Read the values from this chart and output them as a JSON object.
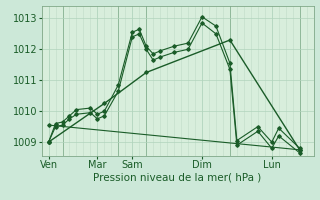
{
  "bg_color": "#cce8d8",
  "plot_bg": "#d8eedc",
  "line_color": "#1a5c28",
  "grid_color": "#b0d4bc",
  "vgrid_color": "#c0dcc8",
  "xlabel": "Pression niveau de la mer( hPa )",
  "xlabel_fontsize": 7.5,
  "tick_fontsize": 7.0,
  "ylim": [
    1008.55,
    1013.4
  ],
  "yticks": [
    1009,
    1010,
    1011,
    1012,
    1013
  ],
  "day_labels": [
    "Ven",
    "Mar",
    "Sam",
    "Dim",
    "Lun"
  ],
  "day_positions": [
    0.5,
    4.0,
    6.5,
    11.5,
    16.5
  ],
  "vline_positions": [
    1.5,
    5.5,
    7.5,
    13.5,
    18.5
  ],
  "xlim": [
    0,
    19.5
  ],
  "line1_x": [
    0.5,
    1.0,
    1.5,
    2.0,
    2.5,
    3.5,
    4.0,
    4.5,
    5.5,
    6.5,
    7.0,
    7.5,
    8.0,
    8.5,
    9.5,
    10.5,
    11.5,
    12.5,
    13.5,
    14.0,
    15.5,
    16.5,
    17.0,
    18.5
  ],
  "line1_y": [
    1009.0,
    1009.6,
    1009.65,
    1009.85,
    1010.05,
    1010.1,
    1009.9,
    1010.0,
    1010.85,
    1012.55,
    1012.65,
    1012.1,
    1011.85,
    1011.95,
    1012.1,
    1012.2,
    1013.05,
    1012.75,
    1011.55,
    1009.05,
    1009.5,
    1009.0,
    1009.45,
    1008.8
  ],
  "line2_x": [
    0.5,
    1.0,
    1.5,
    2.0,
    2.5,
    3.5,
    4.0,
    4.5,
    5.5,
    6.5,
    7.0,
    7.5,
    8.0,
    8.5,
    9.5,
    10.5,
    11.5,
    12.5,
    13.5,
    14.0,
    15.5,
    16.5,
    17.0,
    18.5
  ],
  "line2_y": [
    1009.0,
    1009.5,
    1009.55,
    1009.75,
    1009.9,
    1009.95,
    1009.75,
    1009.85,
    1010.65,
    1012.4,
    1012.5,
    1012.0,
    1011.65,
    1011.75,
    1011.9,
    1012.0,
    1012.85,
    1012.5,
    1011.35,
    1008.9,
    1009.35,
    1008.8,
    1009.2,
    1008.65
  ],
  "line3_x": [
    0.5,
    4.5,
    7.5,
    13.5,
    18.5
  ],
  "line3_y": [
    1009.0,
    1010.25,
    1011.25,
    1012.3,
    1008.75
  ],
  "line4_x": [
    0.5,
    18.5
  ],
  "line4_y": [
    1009.55,
    1008.75
  ]
}
